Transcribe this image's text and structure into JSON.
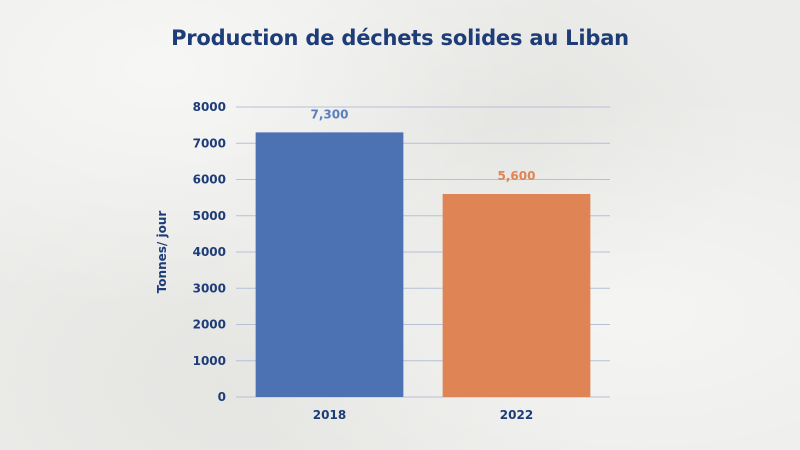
{
  "chart_data": {
    "type": "bar",
    "title": "Production de déchets solides au Liban",
    "xlabel": "",
    "ylabel": "Tonnes/ jour",
    "categories": [
      "2018",
      "2022"
    ],
    "values": [
      7300,
      5600
    ],
    "data_labels": [
      "7,300",
      "5,600"
    ],
    "bar_colors": [
      "#4d72b3",
      "#df8455"
    ],
    "label_colors": [
      "#5a7fbf",
      "#df8455"
    ],
    "ylim": [
      0,
      8000
    ],
    "yticks": [
      0,
      1000,
      2000,
      3000,
      4000,
      5000,
      6000,
      7000,
      8000
    ],
    "grid": true,
    "legend": "none"
  },
  "colors": {
    "title": "#1d3c78",
    "gridline": "#b8c0d6",
    "axis_text": "#1d3c78"
  }
}
